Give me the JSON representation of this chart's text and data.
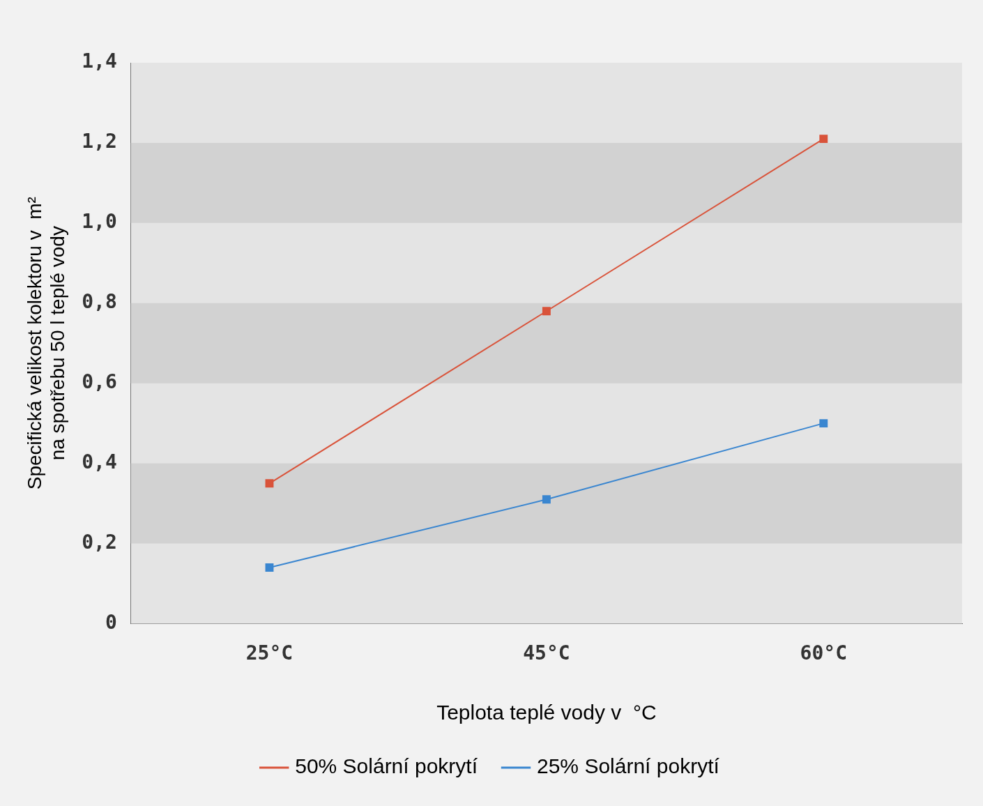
{
  "chart_data": {
    "type": "line",
    "xlabel": "Teplota teplé vody v  °C",
    "ylabel": "Specifická velikost kolektoru v  m² na spotřebu 50 l teplé vody",
    "categories": [
      "25°C",
      "45°C",
      "60°C"
    ],
    "series": [
      {
        "name": "50% Solární pokrytí",
        "color": "#d9533a",
        "values": [
          0.35,
          0.78,
          1.21
        ]
      },
      {
        "name": "25% Solární pokrytí",
        "color": "#3a86d0",
        "values": [
          0.14,
          0.31,
          0.5
        ]
      }
    ],
    "ylim": [
      0,
      1.4
    ],
    "yticks": [
      0,
      {
        "value": 0.2,
        "label": "0,2"
      },
      {
        "value": 0.4,
        "label": "0,4"
      },
      {
        "value": 0.6,
        "label": "0,6"
      },
      {
        "value": 0.8,
        "label": "0,8"
      },
      {
        "value": 1.0,
        "label": "1,0"
      },
      {
        "value": 1.2,
        "label": "1,2"
      },
      {
        "value": 1.4,
        "label": "1,4"
      }
    ],
    "legend": "bottom",
    "marker": "square",
    "line_style": "solid"
  }
}
